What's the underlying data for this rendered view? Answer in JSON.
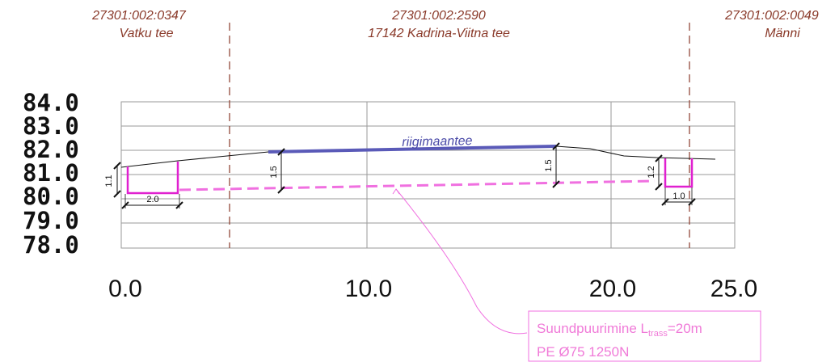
{
  "parcels": [
    {
      "id": "27301:002:0347",
      "name": "Vatku tee"
    },
    {
      "id": "27301:002:2590",
      "name": "17142 Kadrina-Viitna tee"
    },
    {
      "id": "27301:002:0049",
      "name": "Männi"
    }
  ],
  "y_axis_labels": [
    "84.0",
    "83.0",
    "82.0",
    "81.0",
    "80.0",
    "79.0",
    "78.0"
  ],
  "x_axis_labels": [
    "0.0",
    "10.0",
    "20.0",
    "25.0"
  ],
  "road_label": "riigimaantee",
  "dimensions": {
    "left_depth": "1.1",
    "left_width": "2.0",
    "cover_left": "1.5",
    "cover_right": "1.5",
    "right_depth": "1.2",
    "right_width": "1.0"
  },
  "note": {
    "line1_prefix": "Suundpuurimine L",
    "line1_sub": "trass",
    "line1_suffix": "=20m",
    "line2": "PE Ø75 1250N"
  },
  "colors": {
    "boundary": "#8a3a2a",
    "pipe": "#f070e0",
    "pit": "#e020d0",
    "road": "#5a5ab8",
    "grid": "#9a9a9a"
  }
}
